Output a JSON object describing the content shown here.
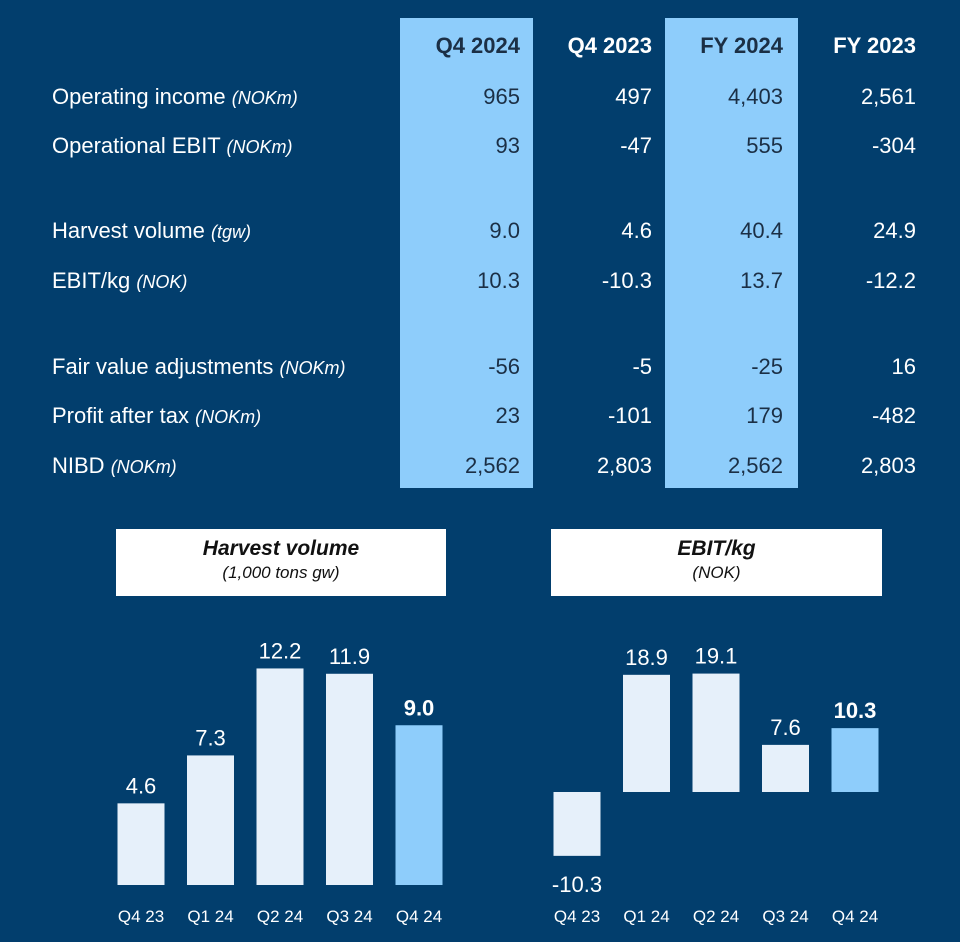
{
  "table": {
    "columns": [
      "Q4 2024",
      "Q4 2023",
      "FY 2024",
      "FY 2023"
    ],
    "highlighted_columns": [
      0,
      2
    ],
    "rows": [
      {
        "label": "Operating income",
        "unit": "(NOKm)",
        "values": [
          "965",
          "497",
          "4,403",
          "2,561"
        ]
      },
      {
        "label": "Operational EBIT",
        "unit": "(NOKm)",
        "values": [
          "93",
          "-47",
          "555",
          "-304"
        ]
      },
      {
        "label": "Harvest volume",
        "unit": "(tgw)",
        "values": [
          "9.0",
          "4.6",
          "40.4",
          "24.9"
        ]
      },
      {
        "label": "EBIT/kg",
        "unit": "(NOK)",
        "values": [
          "10.3",
          "-10.3",
          "13.7",
          "-12.2"
        ]
      },
      {
        "label": "Fair value adjustments",
        "unit": "(NOKm)",
        "values": [
          "-56",
          "-5",
          "-25",
          "16"
        ]
      },
      {
        "label": "Profit after tax",
        "unit": "(NOKm)",
        "values": [
          "23",
          "-101",
          "179",
          "-482"
        ]
      },
      {
        "label": "NIBD",
        "unit": "(NOKm)",
        "values": [
          "2,562",
          "2,803",
          "2,562",
          "2,803"
        ]
      }
    ]
  },
  "colors": {
    "background": "#023e6d",
    "highlight": "#8ecdfb",
    "bar": "#e6f0fa",
    "bar_highlight": "#8ecdfb"
  },
  "chart_data": [
    {
      "type": "bar",
      "title": "Harvest volume",
      "subtitle": "(1,000 tons gw)",
      "categories": [
        "Q4 23",
        "Q1 24",
        "Q2 24",
        "Q3 24",
        "Q4 24"
      ],
      "values": [
        4.6,
        7.3,
        12.2,
        11.9,
        9.0
      ],
      "labels": [
        "4.6",
        "7.3",
        "12.2",
        "11.9",
        "9.0"
      ],
      "highlight_index": 4
    },
    {
      "type": "bar",
      "title": "EBIT/kg",
      "subtitle": "(NOK)",
      "categories": [
        "Q4 23",
        "Q1 24",
        "Q2 24",
        "Q3 24",
        "Q4 24"
      ],
      "values": [
        -10.3,
        18.9,
        19.1,
        7.6,
        10.3
      ],
      "labels": [
        "-10.3",
        "18.9",
        "19.1",
        "7.6",
        "10.3"
      ],
      "highlight_index": 4
    }
  ]
}
